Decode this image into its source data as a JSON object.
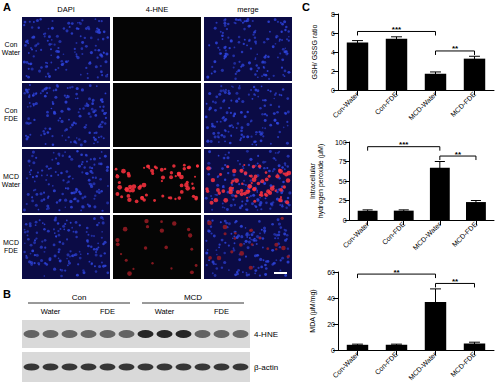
{
  "chart_data": [
    {
      "type": "bar",
      "ylabel": "GSH/ GSSG ratio",
      "categories": [
        "Con-Water",
        "Con-FDE",
        "MCD-Water",
        "MCD-FDE"
      ],
      "values": [
        5.0,
        5.4,
        1.7,
        3.3
      ],
      "errors": [
        0.2,
        0.2,
        0.2,
        0.25
      ],
      "color": "#000000",
      "ylim": [
        0,
        8
      ],
      "yticks": [
        0,
        2,
        4,
        6,
        8
      ],
      "grid": false,
      "significance": [
        {
          "from": "Con-Water",
          "to": "MCD-Water",
          "label": "***"
        },
        {
          "from": "MCD-Water",
          "to": "MCD-FDE",
          "label": "**"
        }
      ]
    },
    {
      "type": "bar",
      "ylabel": "Intracellular\nhydrogen peroxide (μM)",
      "categories": [
        "Con-Water",
        "Con-FDE",
        "MCD-Water",
        "MCD-FDE"
      ],
      "values": [
        12,
        12,
        67,
        23
      ],
      "errors": [
        1,
        1,
        8,
        2
      ],
      "color": "#000000",
      "ylim": [
        0,
        100
      ],
      "yticks": [
        0,
        25,
        50,
        75,
        100
      ],
      "grid": false,
      "significance": [
        {
          "from": "Con-Water",
          "to": "MCD-Water",
          "label": "***"
        },
        {
          "from": "MCD-Water",
          "to": "MCD-FDE",
          "label": "**"
        }
      ]
    },
    {
      "type": "bar",
      "ylabel": "MDA (μM/mg)",
      "categories": [
        "Con-Water",
        "Con-FDE",
        "MCD-Water",
        "MCD-FDE"
      ],
      "values": [
        4,
        4,
        37,
        5
      ],
      "errors": [
        0.5,
        0.5,
        10,
        1
      ],
      "color": "#000000",
      "ylim": [
        0,
        60
      ],
      "yticks": [
        0,
        20,
        40,
        60
      ],
      "grid": false,
      "significance": [
        {
          "from": "Con-Water",
          "to": "MCD-Water",
          "label": "**"
        },
        {
          "from": "MCD-Water",
          "to": "MCD-FDE",
          "label": "**"
        }
      ]
    }
  ],
  "panels": {
    "A": {
      "label": "A",
      "columns": [
        "DAPI",
        "4-HNE",
        "merge"
      ],
      "rows": [
        "Con\nWater",
        "Con\nFDE",
        "MCD\nWater",
        "MCD\nFDE"
      ]
    },
    "B": {
      "label": "B",
      "groups": [
        "Con",
        "MCD"
      ],
      "lanes": [
        "Water",
        "FDE",
        "Water",
        "FDE"
      ],
      "bands": [
        "4-HNE",
        "β-actin"
      ]
    },
    "C": {
      "label": "C"
    }
  }
}
